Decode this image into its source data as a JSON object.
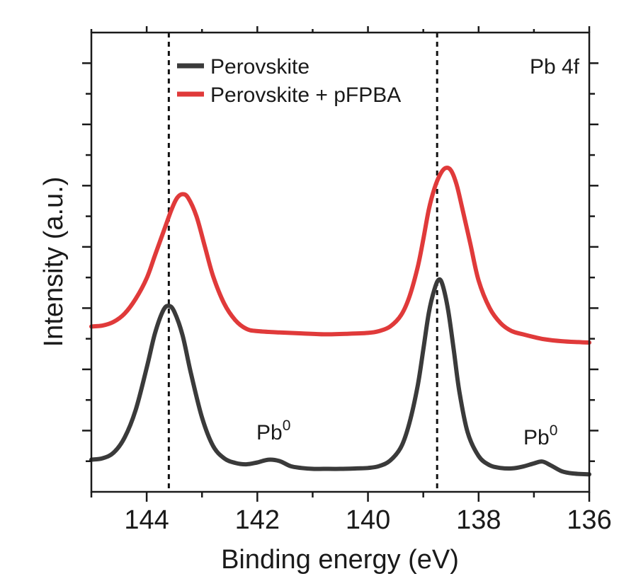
{
  "chart_data": {
    "type": "line",
    "title": "",
    "xlabel": "Binding energy (eV)",
    "ylabel": "Intensity (a.u.)",
    "xlim": [
      145,
      136
    ],
    "ylim": [
      0,
      1
    ],
    "x_reversed": true,
    "x_ticks": [
      144,
      142,
      140,
      138,
      136
    ],
    "x_tick_labels": [
      "144",
      "142",
      "140",
      "138",
      "136"
    ],
    "y_tick_labels_shown": false,
    "panel_label": "Pb 4f",
    "legend_position": "top-left",
    "reference_lines": [
      143.6,
      138.75
    ],
    "annotations": [
      {
        "text": "Pb",
        "superscript": "0",
        "x": 141.8,
        "y": 0.1
      },
      {
        "text": "Pb",
        "superscript": "0",
        "x": 136.9,
        "y": 0.1
      }
    ],
    "series": [
      {
        "name": "Perovskite",
        "color": "#3a3a3a",
        "points": [
          [
            145.0,
            0.07
          ],
          [
            144.8,
            0.073
          ],
          [
            144.6,
            0.085
          ],
          [
            144.4,
            0.118
          ],
          [
            144.2,
            0.178
          ],
          [
            144.0,
            0.27
          ],
          [
            143.85,
            0.345
          ],
          [
            143.7,
            0.395
          ],
          [
            143.6,
            0.405
          ],
          [
            143.5,
            0.392
          ],
          [
            143.35,
            0.34
          ],
          [
            143.2,
            0.258
          ],
          [
            143.0,
            0.162
          ],
          [
            142.8,
            0.1
          ],
          [
            142.6,
            0.073
          ],
          [
            142.4,
            0.063
          ],
          [
            142.2,
            0.06
          ],
          [
            142.0,
            0.064
          ],
          [
            141.8,
            0.07
          ],
          [
            141.6,
            0.067
          ],
          [
            141.4,
            0.056
          ],
          [
            141.2,
            0.052
          ],
          [
            141.0,
            0.05
          ],
          [
            140.8,
            0.05
          ],
          [
            140.5,
            0.05
          ],
          [
            140.2,
            0.051
          ],
          [
            140.0,
            0.052
          ],
          [
            139.8,
            0.056
          ],
          [
            139.6,
            0.068
          ],
          [
            139.4,
            0.098
          ],
          [
            139.25,
            0.15
          ],
          [
            139.1,
            0.232
          ],
          [
            139.0,
            0.31
          ],
          [
            138.9,
            0.39
          ],
          [
            138.8,
            0.44
          ],
          [
            138.72,
            0.462
          ],
          [
            138.65,
            0.45
          ],
          [
            138.55,
            0.395
          ],
          [
            138.45,
            0.31
          ],
          [
            138.35,
            0.22
          ],
          [
            138.2,
            0.13
          ],
          [
            138.0,
            0.078
          ],
          [
            137.8,
            0.058
          ],
          [
            137.6,
            0.052
          ],
          [
            137.4,
            0.051
          ],
          [
            137.2,
            0.055
          ],
          [
            137.0,
            0.062
          ],
          [
            136.85,
            0.066
          ],
          [
            136.7,
            0.058
          ],
          [
            136.5,
            0.045
          ],
          [
            136.3,
            0.04
          ],
          [
            136.0,
            0.038
          ]
        ]
      },
      {
        "name": "Perovskite + pFPBA",
        "color": "#e03a3a",
        "points": [
          [
            145.0,
            0.36
          ],
          [
            144.8,
            0.362
          ],
          [
            144.6,
            0.37
          ],
          [
            144.4,
            0.388
          ],
          [
            144.2,
            0.42
          ],
          [
            144.0,
            0.465
          ],
          [
            143.85,
            0.515
          ],
          [
            143.7,
            0.565
          ],
          [
            143.55,
            0.615
          ],
          [
            143.45,
            0.64
          ],
          [
            143.35,
            0.648
          ],
          [
            143.25,
            0.64
          ],
          [
            143.1,
            0.6
          ],
          [
            142.95,
            0.535
          ],
          [
            142.8,
            0.47
          ],
          [
            142.6,
            0.41
          ],
          [
            142.4,
            0.374
          ],
          [
            142.2,
            0.355
          ],
          [
            142.0,
            0.35
          ],
          [
            141.6,
            0.347
          ],
          [
            141.2,
            0.345
          ],
          [
            140.8,
            0.343
          ],
          [
            140.4,
            0.344
          ],
          [
            140.0,
            0.346
          ],
          [
            139.8,
            0.35
          ],
          [
            139.6,
            0.36
          ],
          [
            139.4,
            0.385
          ],
          [
            139.25,
            0.425
          ],
          [
            139.1,
            0.49
          ],
          [
            139.0,
            0.55
          ],
          [
            138.9,
            0.615
          ],
          [
            138.8,
            0.66
          ],
          [
            138.7,
            0.69
          ],
          [
            138.6,
            0.705
          ],
          [
            138.5,
            0.7
          ],
          [
            138.4,
            0.67
          ],
          [
            138.3,
            0.62
          ],
          [
            138.15,
            0.54
          ],
          [
            138.0,
            0.46
          ],
          [
            137.8,
            0.4
          ],
          [
            137.6,
            0.367
          ],
          [
            137.4,
            0.35
          ],
          [
            137.2,
            0.343
          ],
          [
            137.0,
            0.337
          ],
          [
            136.8,
            0.332
          ],
          [
            136.5,
            0.328
          ],
          [
            136.2,
            0.326
          ],
          [
            136.0,
            0.325
          ]
        ]
      }
    ]
  }
}
